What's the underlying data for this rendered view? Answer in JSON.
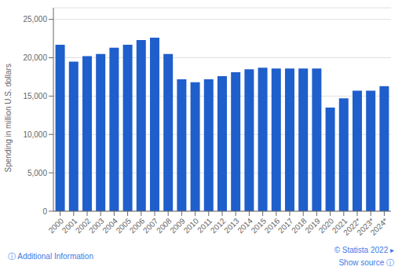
{
  "chart_data": {
    "type": "bar",
    "categories": [
      "2000",
      "2001",
      "2002",
      "2003",
      "2004",
      "2005",
      "2006",
      "2007",
      "2008",
      "2009",
      "2010",
      "2011",
      "2012",
      "2013",
      "2014",
      "2015",
      "2016",
      "2017",
      "2018",
      "2019",
      "2020",
      "2021",
      "2022*",
      "2023*",
      "2024*"
    ],
    "values": [
      21700,
      19500,
      20200,
      20500,
      21300,
      21700,
      22300,
      22600,
      20500,
      17200,
      16800,
      17200,
      17600,
      18100,
      18500,
      18700,
      18600,
      18600,
      18600,
      18600,
      13500,
      14700,
      15700,
      15700,
      16300
    ],
    "color": "#1f5fcc",
    "ylabel": "Spending in million U.S. dollars",
    "ylim": [
      0,
      26500
    ],
    "yticks": [
      0,
      {
        "value": 5000,
        "label": "5,000"
      },
      {
        "value": 10000,
        "label": "10,000"
      },
      {
        "value": 15000,
        "label": "15,000"
      },
      {
        "value": 20000,
        "label": "20,000"
      },
      {
        "value": 25000,
        "label": "25,000"
      }
    ],
    "grid": true,
    "annotations": [
      "ⓘ Additional Information",
      "© Statista 2022 ▸",
      "Show source ⓘ"
    ]
  }
}
